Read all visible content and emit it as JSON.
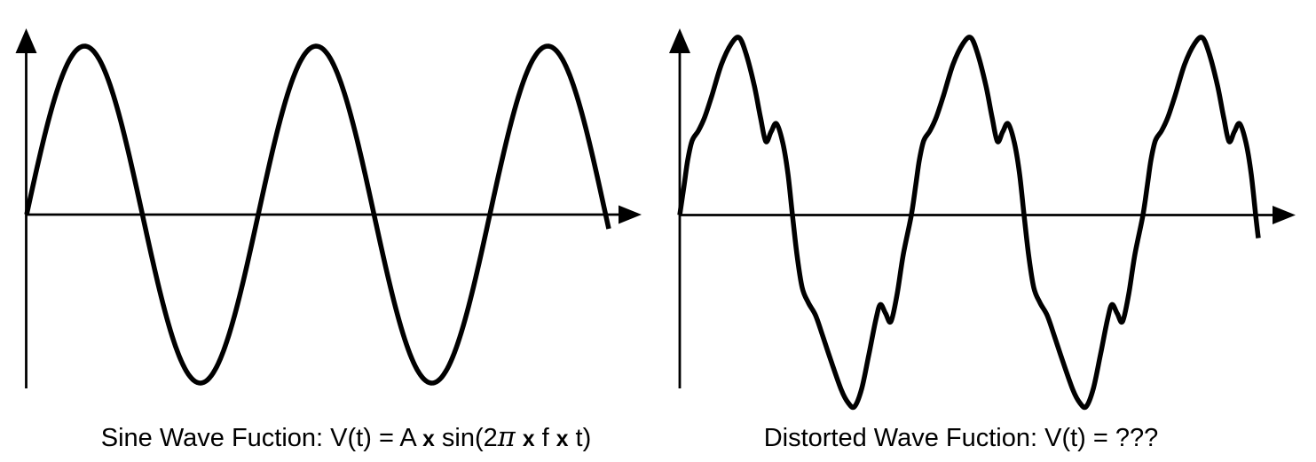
{
  "page": {
    "background": "#ffffff",
    "ink": "#000000"
  },
  "captions": {
    "left": {
      "full_text": "Sine Wave Fuction: V(t) = A x sin(2π x f x t)",
      "segments": [
        {
          "t": "Sine Wave Fuction: V(t) = A "
        },
        {
          "t": "x",
          "style": "bx"
        },
        {
          "t": " sin(2"
        },
        {
          "t": "π",
          "style": "pi"
        },
        {
          "t": " "
        },
        {
          "t": "x",
          "style": "bx"
        },
        {
          "t": " f "
        },
        {
          "t": "x",
          "style": "bx"
        },
        {
          "t": " t)"
        }
      ]
    },
    "right": {
      "full_text": "Distorted Wave Fuction: V(t) = ???",
      "segments": [
        {
          "t": "Distorted Wave Fuction: V(t) = ???"
        }
      ]
    }
  },
  "figure": {
    "style": {
      "axisStroke": 2.8,
      "waveStroke": 5.5,
      "xArrowLen": 26,
      "xArrowHalfWidth": 10.5,
      "yArrowLen": 28,
      "yArrowHalfWidth": 12
    },
    "panels": [
      {
        "id": "sine",
        "name": "sine-wave-panel",
        "axes": {
          "yAxisX": 29.5,
          "yArrowTipY": 32,
          "yAxisBottomY": 438,
          "xAxisY": 242,
          "xAxisStartX": 29.5,
          "xAxisEndX": 701,
          "xArrowTipX": 723
        },
        "wave": {
          "type": "sine",
          "originX": 30,
          "axisY": 242,
          "amplitude": 190,
          "period": 261,
          "endX": 686
        }
      },
      {
        "id": "distorted",
        "name": "distorted-wave-panel",
        "axes": {
          "yAxisX": 766,
          "yArrowTipY": 32,
          "yAxisBottomY": 438,
          "xAxisY": 242.5,
          "xAxisStartX": 766,
          "xAxisEndX": 1438,
          "xArrowTipX": 1460
        },
        "wave": {
          "type": "periodic-spline",
          "originX": 766,
          "axisY": 242.5,
          "period": 261,
          "cycles": 3,
          "endX": 1415,
          "tail": [
            [
              1418,
              26
            ]
          ],
          "periodPoints": [
            [
              0,
              0
            ],
            [
              5,
              -34
            ],
            [
              9,
              -62
            ],
            [
              14,
              -84
            ],
            [
              21,
              -95
            ],
            [
              28,
              -110
            ],
            [
              36,
              -134
            ],
            [
              47,
              -170
            ],
            [
              58,
              -193
            ],
            [
              67,
              -200
            ],
            [
              75,
              -181
            ],
            [
              84,
              -146
            ],
            [
              91,
              -110
            ],
            [
              97,
              -83
            ],
            [
              103,
              -94
            ],
            [
              109,
              -103
            ],
            [
              116,
              -82
            ],
            [
              122,
              -46
            ],
            [
              127,
              0
            ],
            [
              132,
              44
            ],
            [
              138,
              82
            ],
            [
              145,
              99
            ],
            [
              153,
              113
            ],
            [
              161,
              136
            ],
            [
              170,
              163
            ],
            [
              182,
              197
            ],
            [
              190,
              212
            ],
            [
              197,
              216
            ],
            [
              205,
              196
            ],
            [
              213,
              158
            ],
            [
              221,
              118
            ],
            [
              226,
              101
            ],
            [
              232,
              111
            ],
            [
              238,
              120
            ],
            [
              245,
              89
            ],
            [
              252,
              44
            ],
            [
              261,
              0
            ]
          ]
        }
      }
    ]
  }
}
